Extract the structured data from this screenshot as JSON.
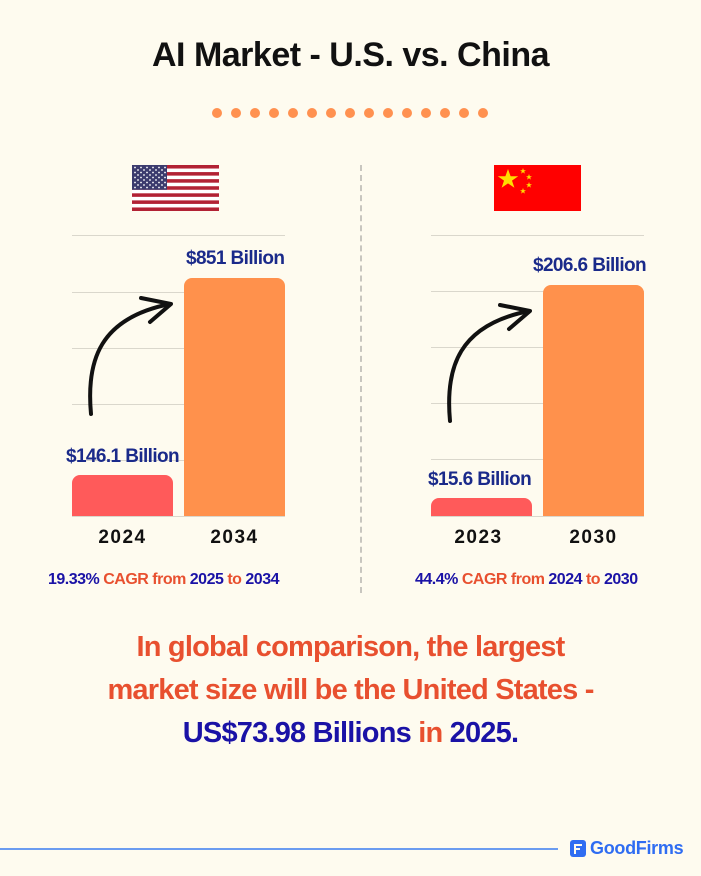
{
  "header": {
    "title": "AI Market - U.S. vs. China",
    "dot_count": 15
  },
  "colors": {
    "background": "#fefbef",
    "dots": "#ff9150",
    "bar_start": "#ff5a5a",
    "bar_end": "#ff914c",
    "value_label": "#1a2a8a",
    "cagr_accent": "#e8502f",
    "cagr_number": "#1a12a6",
    "summary_red": "#e8502f",
    "summary_blue": "#1a12a6",
    "brand": "#2f6df2",
    "footer_line": "#6b9cf0"
  },
  "panels": [
    {
      "country": "United States",
      "flag": "us-flag",
      "bars": [
        {
          "year": "2024",
          "label": "$146.1 Billion",
          "value": 146.1
        },
        {
          "year": "2034",
          "label": "$851 Billion",
          "value": 851
        }
      ],
      "cagr": {
        "rate": "19.33%",
        "text1": "CAGR from",
        "from": "2025",
        "text2": "to",
        "to": "2034"
      }
    },
    {
      "country": "China",
      "flag": "china-flag",
      "bars": [
        {
          "year": "2023",
          "label": "$15.6 Billion",
          "value": 15.6
        },
        {
          "year": "2030",
          "label": "$206.6 Billion",
          "value": 206.6
        }
      ],
      "cagr": {
        "rate": "44.4%",
        "text1": "CAGR from",
        "from": "2024",
        "text2": "to",
        "to": "2030"
      }
    }
  ],
  "summary": {
    "line1": "In global comparison, the largest",
    "line2": "market size will be the United States -",
    "amount": "US$73.98 Billions",
    "in": "in",
    "year": "2025."
  },
  "footer": {
    "brand": "GoodFirms"
  },
  "chart_data": [
    {
      "type": "bar",
      "title": "AI Market - U.S.",
      "categories": [
        "2024",
        "2034"
      ],
      "values": [
        146.1,
        851
      ],
      "value_labels": [
        "$146.1 Billion",
        "$851 Billion"
      ],
      "unit": "USD Billion",
      "xlabel": "",
      "ylabel": "",
      "grid": true,
      "annotation": "19.33% CAGR from 2025 to 2034"
    },
    {
      "type": "bar",
      "title": "AI Market - China",
      "categories": [
        "2023",
        "2030"
      ],
      "values": [
        15.6,
        206.6
      ],
      "value_labels": [
        "$15.6 Billion",
        "$206.6 Billion"
      ],
      "unit": "USD Billion",
      "xlabel": "",
      "ylabel": "",
      "grid": true,
      "annotation": "44.4% CAGR from 2024 to 2030"
    }
  ]
}
